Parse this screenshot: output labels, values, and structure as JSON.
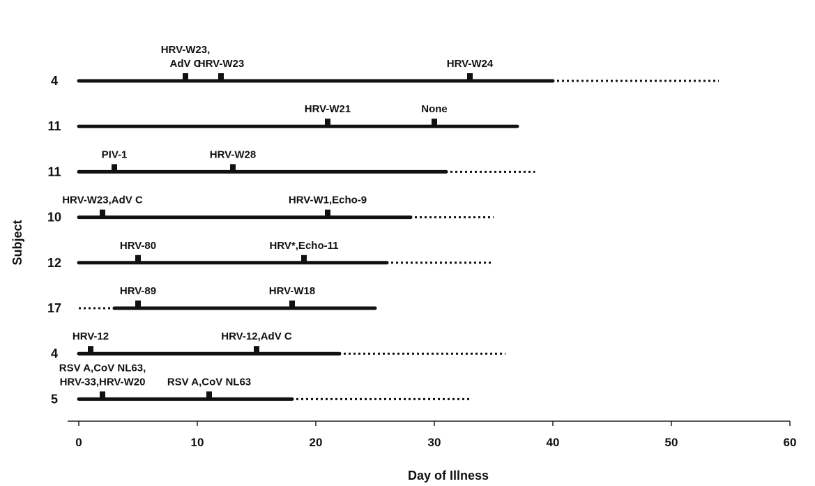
{
  "chart_data": {
    "type": "timeline",
    "title": "",
    "xlabel": "Day of Illness",
    "ylabel": "Subject",
    "xlim": [
      0,
      60
    ],
    "xticks": [
      0,
      10,
      20,
      30,
      40,
      50,
      60
    ],
    "grid": false,
    "legend": "none",
    "colors": {
      "line": "#111111",
      "axis": "#222222"
    },
    "rows": [
      {
        "subject": "4",
        "dotted_before": null,
        "solid": [
          0,
          40
        ],
        "dotted_after": [
          40,
          54
        ],
        "samples": [
          {
            "day": 9,
            "label": [
              "HRV-W23,",
              "AdV C"
            ]
          },
          {
            "day": 12,
            "label": [
              "HRV-W23"
            ]
          },
          {
            "day": 33,
            "label": [
              "HRV-W24"
            ]
          }
        ]
      },
      {
        "subject": "11",
        "dotted_before": null,
        "solid": [
          0,
          37
        ],
        "dotted_after": null,
        "samples": [
          {
            "day": 21,
            "label": [
              "HRV-W21"
            ]
          },
          {
            "day": 30,
            "label": [
              "None"
            ]
          }
        ]
      },
      {
        "subject": "11",
        "dotted_before": null,
        "solid": [
          0,
          31
        ],
        "dotted_after": [
          31,
          38.5
        ],
        "samples": [
          {
            "day": 3,
            "label": [
              "PIV-1"
            ]
          },
          {
            "day": 13,
            "label": [
              "HRV-W28"
            ]
          }
        ]
      },
      {
        "subject": "10",
        "dotted_before": null,
        "solid": [
          0,
          28
        ],
        "dotted_after": [
          28,
          35
        ],
        "samples": [
          {
            "day": 2,
            "label": [
              "HRV-W23,AdV C"
            ]
          },
          {
            "day": 21,
            "label": [
              "HRV-W1,Echo-9"
            ]
          }
        ]
      },
      {
        "subject": "12",
        "dotted_before": null,
        "solid": [
          0,
          26
        ],
        "dotted_after": [
          26,
          35
        ],
        "samples": [
          {
            "day": 5,
            "label": [
              "HRV-80"
            ]
          },
          {
            "day": 19,
            "label": [
              "HRV*,Echo-11"
            ]
          }
        ]
      },
      {
        "subject": "17",
        "dotted_before": [
          0,
          3
        ],
        "solid": [
          3,
          25
        ],
        "dotted_after": null,
        "samples": [
          {
            "day": 5,
            "label": [
              "HRV-89"
            ]
          },
          {
            "day": 18,
            "label": [
              "HRV-W18"
            ]
          }
        ]
      },
      {
        "subject": "4",
        "dotted_before": null,
        "solid": [
          0,
          22
        ],
        "dotted_after": [
          22,
          36
        ],
        "samples": [
          {
            "day": 1,
            "label": [
              "HRV-12"
            ]
          },
          {
            "day": 15,
            "label": [
              "HRV-12,AdV C"
            ]
          }
        ]
      },
      {
        "subject": "5",
        "dotted_before": null,
        "solid": [
          0,
          18
        ],
        "dotted_after": [
          18,
          33
        ],
        "samples": [
          {
            "day": 2,
            "label": [
              "RSV A,CoV NL63,",
              "HRV-33,HRV-W20"
            ]
          },
          {
            "day": 11,
            "label": [
              "RSV A,CoV NL63"
            ]
          }
        ]
      }
    ]
  }
}
